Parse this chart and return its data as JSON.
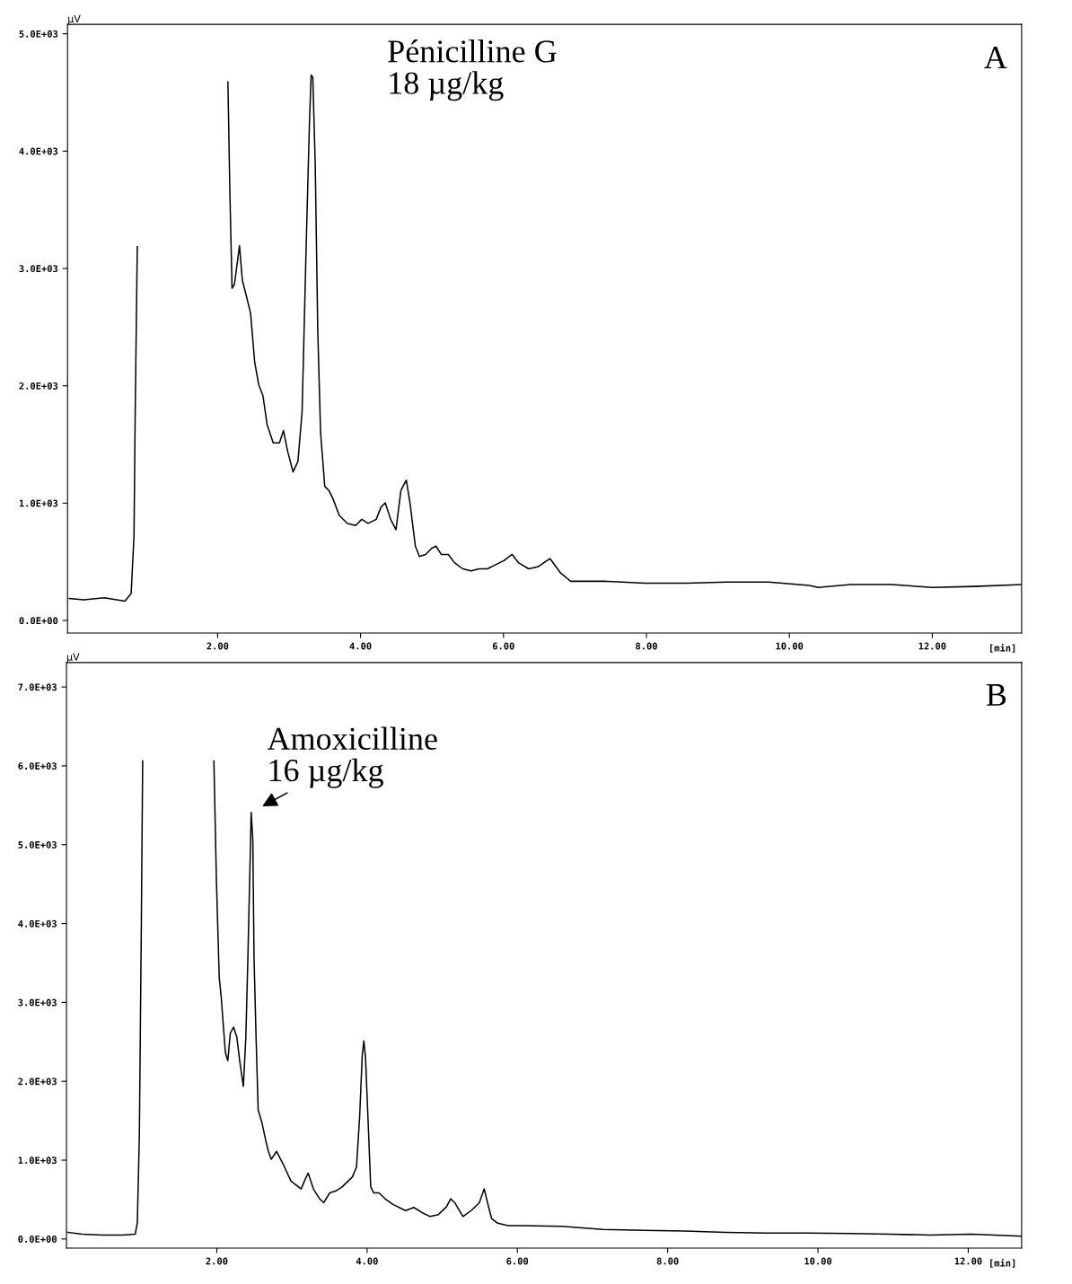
{
  "chart_data": [
    {
      "type": "line",
      "title": "A",
      "ylabel": "µV",
      "xlabel": "[min]",
      "annotations": [
        "Pénicilline G\n18 µg/kg"
      ],
      "xlim": [
        -0.1,
        13.25
      ],
      "ylim": [
        -107,
        5080
      ],
      "xticks": [
        {
          "value": 2,
          "label": "2.00"
        },
        {
          "value": 4,
          "label": "4.00"
        },
        {
          "value": 6,
          "label": "6.00"
        },
        {
          "value": 8,
          "label": "8.00"
        },
        {
          "value": 10,
          "label": "10.00"
        },
        {
          "value": 12,
          "label": "12.00"
        }
      ],
      "yticks": [
        {
          "value": 0,
          "label": "0.0E+00"
        },
        {
          "value": 1000,
          "label": "1.0E+03"
        },
        {
          "value": 2000,
          "label": "2.0E+03"
        },
        {
          "value": 3000,
          "label": "3.0E+03"
        },
        {
          "value": 4000,
          "label": "4.0E+03"
        },
        {
          "value": 5000,
          "label": "5.0E+03"
        }
      ],
      "grid": false,
      "marker": "none",
      "line_style": "solid",
      "series": [
        {
          "color": "#000000",
          "x": [
            -0.075,
            0.127,
            0.415,
            0.703,
            0.79,
            0.83,
            0.847,
            0.876,
            0.888,
            1.5,
            2.115,
            2.144,
            2.173,
            2.202,
            2.236,
            2.306,
            2.346,
            2.404,
            2.461,
            2.519,
            2.577,
            2.634,
            2.692,
            2.778,
            2.865,
            2.922,
            2.98,
            3.055,
            3.124,
            3.182,
            3.239,
            3.285,
            3.309,
            3.332,
            3.366,
            3.401,
            3.441,
            3.499,
            3.556,
            3.614,
            3.7,
            3.816,
            3.931,
            4.018,
            4.104,
            4.219,
            4.288,
            4.346,
            4.421,
            4.496,
            4.565,
            4.64,
            4.692,
            4.767,
            4.824,
            4.911,
            4.997,
            5.055,
            5.13,
            5.228,
            5.314,
            5.43,
            5.545,
            5.66,
            5.775,
            5.891,
            6.006,
            6.121,
            6.208,
            6.352,
            6.48,
            6.65,
            6.8,
            6.94,
            7.4,
            7.98,
            8.55,
            9.13,
            9.71,
            10.28,
            10.4,
            10.86,
            11.43,
            12.01,
            12.58,
            13.25
          ],
          "values": [
            187,
            176,
            194,
            165,
            229,
            721,
            1778,
            3186,
            null,
            null,
            null,
            4590,
            3605,
            2831,
            2866,
            3194,
            2900,
            2761,
            2620,
            2200,
            2005,
            1917,
            1671,
            1513,
            1513,
            1618,
            1442,
            1266,
            1355,
            1778,
            3186,
            4243,
            4648,
            4630,
            3890,
            2479,
            1600,
            1143,
            1108,
            1038,
            897,
            827,
            809,
            862,
            827,
            862,
            967,
            1002,
            862,
            774,
            1108,
            1196,
            1002,
            633,
            545,
            563,
            616,
            633,
            563,
            563,
            493,
            440,
            422,
            440,
            440,
            475,
            510,
            563,
            493,
            440,
            457,
            528,
            404,
            334,
            334,
            317,
            317,
            327,
            327,
            299,
            281,
            306,
            306,
            281,
            290,
            306
          ]
        }
      ]
    },
    {
      "type": "line",
      "title": "B",
      "ylabel": "µV",
      "xlabel": "[min]",
      "annotations": [
        {
          "text": "Amoxicilline\n16 µg/kg",
          "x": 2.458,
          "y": 5410
        }
      ],
      "xlim": [
        0,
        12.71
      ],
      "ylim": [
        -115,
        7310
      ],
      "xticks": [
        {
          "value": 2,
          "label": "2.00"
        },
        {
          "value": 4,
          "label": "4.00"
        },
        {
          "value": 6,
          "label": "6.00"
        },
        {
          "value": 8,
          "label": "8.00"
        },
        {
          "value": 10,
          "label": "10.00"
        },
        {
          "value": 12,
          "label": "12.00"
        }
      ],
      "yticks": [
        {
          "value": 0,
          "label": "0.0E+00"
        },
        {
          "value": 1000,
          "label": "1.0E+03"
        },
        {
          "value": 2000,
          "label": "2.0E+03"
        },
        {
          "value": 3000,
          "label": "3.0E+03"
        },
        {
          "value": 4000,
          "label": "4.0E+03"
        },
        {
          "value": 5000,
          "label": "5.0E+03"
        },
        {
          "value": 6000,
          "label": "6.0E+03"
        },
        {
          "value": 7000,
          "label": "7.0E+03"
        }
      ],
      "grid": false,
      "marker": "none",
      "line_style": "solid",
      "series": [
        {
          "color": "#000000",
          "x": [
            0.016,
            0.207,
            0.48,
            0.752,
            0.916,
            0.943,
            0.97,
            0.997,
            1.014,
            1.025,
            1.5,
            1.94,
            1.962,
            1.995,
            2.033,
            2.06,
            2.087,
            2.115,
            2.147,
            2.18,
            2.224,
            2.267,
            2.305,
            2.354,
            2.387,
            2.414,
            2.442,
            2.458,
            2.48,
            2.496,
            2.523,
            2.551,
            2.605,
            2.649,
            2.687,
            2.725,
            2.796,
            2.878,
            2.987,
            3.123,
            3.178,
            3.216,
            3.286,
            3.368,
            3.423,
            3.504,
            3.586,
            3.668,
            3.804,
            3.859,
            3.902,
            3.935,
            3.957,
            3.979,
            4.011,
            4.049,
            4.088,
            4.158,
            4.24,
            4.349,
            4.513,
            4.622,
            4.731,
            4.84,
            4.949,
            5.058,
            5.112,
            5.167,
            5.276,
            5.385,
            5.494,
            5.559,
            5.603,
            5.657,
            5.739,
            5.875,
            6.05,
            6.59,
            7.14,
            7.68,
            8.23,
            8.77,
            9.32,
            9.86,
            10.41,
            10.95,
            11.5,
            12.04,
            12.7
          ],
          "values": [
            85,
            60,
            50,
            50,
            60,
            210,
            1311,
            4062,
            6063,
            null,
            null,
            null,
            6063,
            4562,
            3312,
            3062,
            2711,
            2361,
            2261,
            2611,
            2686,
            2561,
            2261,
            1936,
            2561,
            3562,
            4712,
            5410,
            5063,
            3562,
            2561,
            1636,
            1461,
            1261,
            1111,
            1011,
            1111,
            960,
            735,
            635,
            760,
            835,
            635,
            510,
            460,
            585,
            610,
            660,
            785,
            910,
            1561,
            2311,
            2511,
            2311,
            1561,
            660,
            585,
            585,
            510,
            435,
            360,
            400,
            335,
            285,
            310,
            410,
            510,
            460,
            285,
            360,
            460,
            635,
            460,
            260,
            200,
            170,
            170,
            160,
            120,
            110,
            100,
            85,
            75,
            75,
            70,
            60,
            50,
            60,
            35
          ]
        }
      ]
    }
  ]
}
